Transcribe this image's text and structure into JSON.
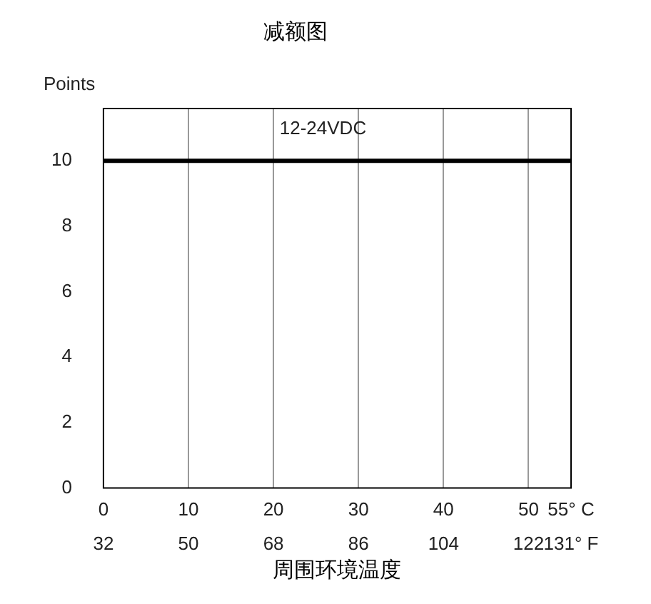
{
  "chart_data": {
    "type": "line",
    "title": "减额图",
    "ylabel": "Points",
    "xlabel": "周围环境温度",
    "x": [
      0,
      55
    ],
    "series": [
      {
        "color": "#000000",
        "values": [
          10,
          10
        ]
      }
    ],
    "xlim": [
      0,
      55
    ],
    "xticks": [
      0,
      10,
      20,
      30,
      40,
      50,
      {
        "value": 55,
        "label": "55° C"
      }
    ],
    "x2lim": [
      32,
      131
    ],
    "x2ticks": [
      32,
      50,
      68,
      86,
      104,
      122,
      {
        "value": 131,
        "label": "131° F"
      }
    ],
    "ylim": [
      0,
      11.6
    ],
    "yticks": [
      0,
      2,
      4,
      6,
      8,
      10
    ],
    "annotations": [
      "12-24VDC"
    ],
    "grid": "x",
    "legend": false,
    "marker": "none",
    "line_style": "solid"
  }
}
